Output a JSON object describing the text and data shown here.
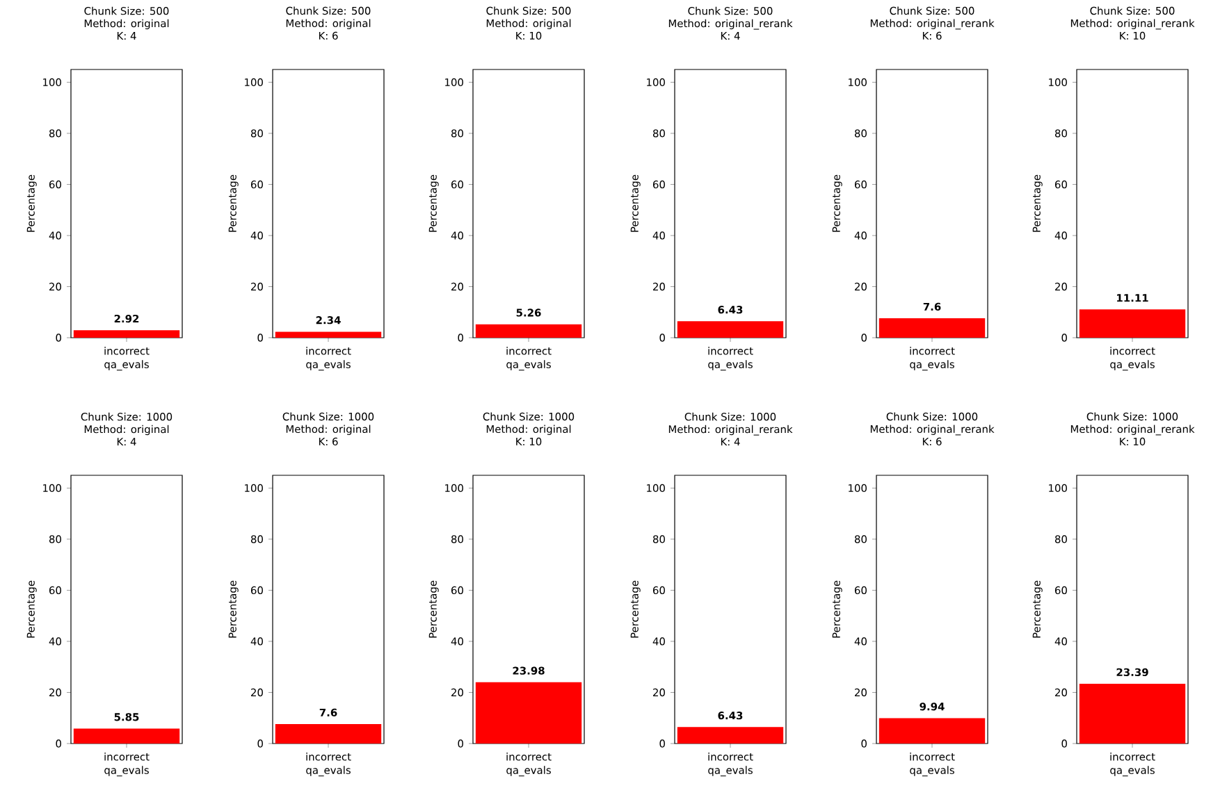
{
  "chart_data": [
    {
      "type": "bar",
      "title": [
        "Chunk Size: 500",
        "Method: original",
        "K: 4"
      ],
      "categories": [
        "incorrect"
      ],
      "values": [
        2.92
      ],
      "color": "#ff0000",
      "xlabel": "qa_evals",
      "ylabel": "Percentage",
      "ylim": [
        0,
        105
      ],
      "yticks": [
        0,
        20,
        40,
        60,
        80,
        100
      ],
      "data_labels": true
    },
    {
      "type": "bar",
      "title": [
        "Chunk Size: 500",
        "Method: original",
        "K: 6"
      ],
      "categories": [
        "incorrect"
      ],
      "values": [
        2.34
      ],
      "color": "#ff0000",
      "xlabel": "qa_evals",
      "ylabel": "Percentage",
      "ylim": [
        0,
        105
      ],
      "yticks": [
        0,
        20,
        40,
        60,
        80,
        100
      ],
      "data_labels": true
    },
    {
      "type": "bar",
      "title": [
        "Chunk Size: 500",
        "Method: original",
        "K: 10"
      ],
      "categories": [
        "incorrect"
      ],
      "values": [
        5.26
      ],
      "color": "#ff0000",
      "xlabel": "qa_evals",
      "ylabel": "Percentage",
      "ylim": [
        0,
        105
      ],
      "yticks": [
        0,
        20,
        40,
        60,
        80,
        100
      ],
      "data_labels": true
    },
    {
      "type": "bar",
      "title": [
        "Chunk Size: 500",
        "Method: original_rerank",
        "K: 4"
      ],
      "categories": [
        "incorrect"
      ],
      "values": [
        6.43
      ],
      "color": "#ff0000",
      "xlabel": "qa_evals",
      "ylabel": "Percentage",
      "ylim": [
        0,
        105
      ],
      "yticks": [
        0,
        20,
        40,
        60,
        80,
        100
      ],
      "data_labels": true
    },
    {
      "type": "bar",
      "title": [
        "Chunk Size: 500",
        "Method: original_rerank",
        "K: 6"
      ],
      "categories": [
        "incorrect"
      ],
      "values": [
        7.6
      ],
      "color": "#ff0000",
      "xlabel": "qa_evals",
      "ylabel": "Percentage",
      "ylim": [
        0,
        105
      ],
      "yticks": [
        0,
        20,
        40,
        60,
        80,
        100
      ],
      "data_labels": true
    },
    {
      "type": "bar",
      "title": [
        "Chunk Size: 500",
        "Method: original_rerank",
        "K: 10"
      ],
      "categories": [
        "incorrect"
      ],
      "values": [
        11.11
      ],
      "color": "#ff0000",
      "xlabel": "qa_evals",
      "ylabel": "Percentage",
      "ylim": [
        0,
        105
      ],
      "yticks": [
        0,
        20,
        40,
        60,
        80,
        100
      ],
      "data_labels": true
    },
    {
      "type": "bar",
      "title": [
        "Chunk Size: 1000",
        "Method: original",
        "K: 4"
      ],
      "categories": [
        "incorrect"
      ],
      "values": [
        5.85
      ],
      "color": "#ff0000",
      "xlabel": "qa_evals",
      "ylabel": "Percentage",
      "ylim": [
        0,
        105
      ],
      "yticks": [
        0,
        20,
        40,
        60,
        80,
        100
      ],
      "data_labels": true
    },
    {
      "type": "bar",
      "title": [
        "Chunk Size: 1000",
        "Method: original",
        "K: 6"
      ],
      "categories": [
        "incorrect"
      ],
      "values": [
        7.6
      ],
      "color": "#ff0000",
      "xlabel": "qa_evals",
      "ylabel": "Percentage",
      "ylim": [
        0,
        105
      ],
      "yticks": [
        0,
        20,
        40,
        60,
        80,
        100
      ],
      "data_labels": true
    },
    {
      "type": "bar",
      "title": [
        "Chunk Size: 1000",
        "Method: original",
        "K: 10"
      ],
      "categories": [
        "incorrect"
      ],
      "values": [
        23.98
      ],
      "color": "#ff0000",
      "xlabel": "qa_evals",
      "ylabel": "Percentage",
      "ylim": [
        0,
        105
      ],
      "yticks": [
        0,
        20,
        40,
        60,
        80,
        100
      ],
      "data_labels": true
    },
    {
      "type": "bar",
      "title": [
        "Chunk Size: 1000",
        "Method: original_rerank",
        "K: 4"
      ],
      "categories": [
        "incorrect"
      ],
      "values": [
        6.43
      ],
      "color": "#ff0000",
      "xlabel": "qa_evals",
      "ylabel": "Percentage",
      "ylim": [
        0,
        105
      ],
      "yticks": [
        0,
        20,
        40,
        60,
        80,
        100
      ],
      "data_labels": true
    },
    {
      "type": "bar",
      "title": [
        "Chunk Size: 1000",
        "Method: original_rerank",
        "K: 6"
      ],
      "categories": [
        "incorrect"
      ],
      "values": [
        9.94
      ],
      "color": "#ff0000",
      "xlabel": "qa_evals",
      "ylabel": "Percentage",
      "ylim": [
        0,
        105
      ],
      "yticks": [
        0,
        20,
        40,
        60,
        80,
        100
      ],
      "data_labels": true
    },
    {
      "type": "bar",
      "title": [
        "Chunk Size: 1000",
        "Method: original_rerank",
        "K: 10"
      ],
      "categories": [
        "incorrect"
      ],
      "values": [
        23.39
      ],
      "color": "#ff0000",
      "xlabel": "qa_evals",
      "ylabel": "Percentage",
      "ylim": [
        0,
        105
      ],
      "yticks": [
        0,
        20,
        40,
        60,
        80,
        100
      ],
      "data_labels": true
    }
  ]
}
